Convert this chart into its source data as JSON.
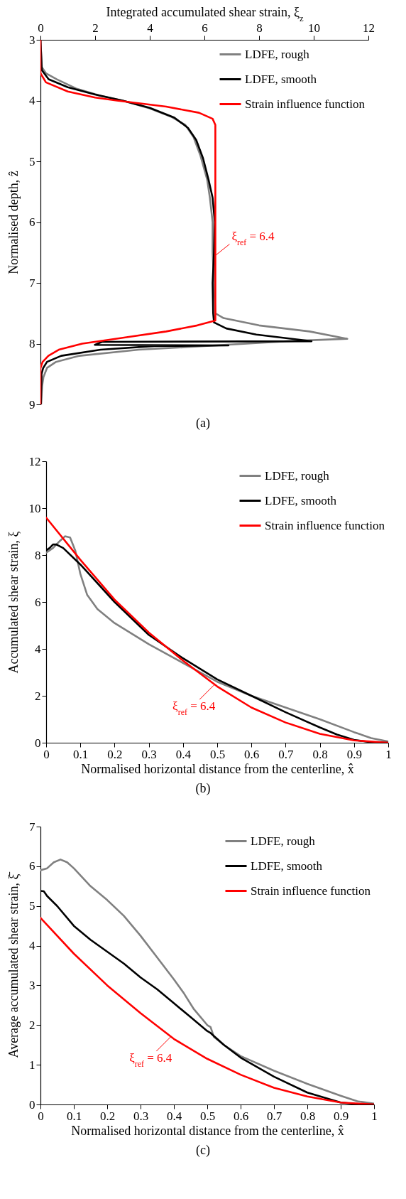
{
  "chart_data": [
    {
      "type": "line",
      "xlabel": "Integrated accumulated shear strain, ξ$_{z}$",
      "ylabel": "Normalised depth, ẑ",
      "xlim": [
        0,
        12
      ],
      "xticks": [
        0,
        2,
        4,
        6,
        8,
        10,
        12
      ],
      "ylim": [
        9,
        3
      ],
      "yticks": [
        3,
        4,
        5,
        6,
        7,
        8,
        9
      ],
      "legend": "top right",
      "annotations": [
        {
          "text": "ξ$_{ref}$ = 6.4",
          "x": 6.4,
          "y": 6.55
        },
        "(a)"
      ],
      "series": [
        {
          "name": "LDFE, rough",
          "color": "#808080",
          "x": [
            0,
            0.05,
            0.2,
            0.6,
            1.3,
            2.2,
            3,
            4,
            4.8,
            5.3,
            5.6,
            5.85,
            6.1,
            6.2,
            6.3,
            6.3,
            6.35,
            6.4,
            6.7,
            8.0,
            9.85,
            11.23,
            9.0,
            5.64,
            3.6,
            1.43,
            0.57,
            0.24,
            0.11,
            0.06,
            0.02
          ],
          "values": [
            3,
            3.45,
            3.55,
            3.65,
            3.8,
            3.92,
            4.0,
            4.13,
            4.27,
            4.4,
            4.6,
            4.9,
            5.3,
            5.6,
            6.0,
            6.5,
            7.0,
            7.5,
            7.58,
            7.7,
            7.8,
            7.92,
            7.96,
            8.05,
            8.1,
            8.2,
            8.3,
            8.4,
            8.55,
            8.7,
            9
          ]
        },
        {
          "name": "LDFE, smooth",
          "color": "#000000",
          "x": [
            0,
            0.05,
            0.3,
            1,
            2,
            3,
            4,
            4.9,
            5.4,
            5.7,
            5.95,
            6.15,
            6.3,
            6.38,
            6.35,
            6.3,
            6.32,
            6.35,
            6.8,
            7.9,
            9.37,
            9.92,
            2.25,
            1.99,
            6.88,
            4.17,
            2.2,
            0.76,
            0.24,
            0.1,
            0.04,
            0.02
          ],
          "values": [
            3,
            3.5,
            3.65,
            3.78,
            3.9,
            4.0,
            4.12,
            4.28,
            4.45,
            4.65,
            4.95,
            5.3,
            5.6,
            6.0,
            6.5,
            7.0,
            7.5,
            7.65,
            7.75,
            7.85,
            7.93,
            7.96,
            7.97,
            8.02,
            8.03,
            8.04,
            8.1,
            8.2,
            8.3,
            8.4,
            8.5,
            9
          ]
        },
        {
          "name": "Strain influence function",
          "color": "#ff0000",
          "x": [
            0,
            0,
            0.2,
            1.0,
            2.0,
            2.8,
            4.6,
            5.8,
            6.3,
            6.4,
            6.4,
            6.4,
            5.74,
            4.6,
            3.06,
            1.53,
            0.67,
            0.29,
            0.08,
            0,
            0
          ],
          "values": [
            3,
            3.55,
            3.7,
            3.85,
            3.95,
            4.0,
            4.1,
            4.2,
            4.3,
            4.4,
            7.0,
            7.62,
            7.7,
            7.8,
            7.9,
            8.0,
            8.1,
            8.2,
            8.3,
            8.4,
            9
          ]
        }
      ]
    },
    {
      "type": "line",
      "xlabel": "Normalised horizontal distance from the centerline, x̂",
      "ylabel": "Accumulated shear strain, ξ",
      "xlim": [
        0,
        1
      ],
      "xticks": [
        0,
        0.1,
        0.2,
        0.3,
        0.4,
        0.5,
        0.6,
        0.7,
        0.8,
        0.9,
        1
      ],
      "ylim": [
        0,
        12
      ],
      "yticks": [
        0,
        2,
        4,
        6,
        8,
        10,
        12
      ],
      "legend": "top right",
      "annotations": [
        {
          "text": "ξ$_{ref}$ = 6.4",
          "x": 0.49,
          "y": 2.45
        },
        "(b)"
      ],
      "series": [
        {
          "name": "LDFE, rough",
          "color": "#808080",
          "x": [
            0,
            0.02,
            0.04,
            0.055,
            0.07,
            0.085,
            0.1,
            0.12,
            0.15,
            0.2,
            0.3,
            0.4,
            0.5,
            0.6,
            0.7,
            0.8,
            0.9,
            0.95,
            1
          ],
          "values": [
            8.1,
            8.3,
            8.6,
            8.8,
            8.75,
            8.2,
            7.2,
            6.3,
            5.7,
            5.1,
            4.2,
            3.4,
            2.6,
            2.0,
            1.5,
            1.0,
            0.45,
            0.2,
            0.05
          ]
        },
        {
          "name": "LDFE, smooth",
          "color": "#000000",
          "x": [
            0,
            0.01,
            0.02,
            0.03,
            0.05,
            0.1,
            0.2,
            0.3,
            0.4,
            0.5,
            0.6,
            0.7,
            0.8,
            0.85,
            0.9,
            0.95,
            1
          ],
          "values": [
            8.2,
            8.3,
            8.45,
            8.45,
            8.3,
            7.6,
            6.0,
            4.6,
            3.6,
            2.7,
            2.0,
            1.3,
            0.65,
            0.35,
            0.12,
            0.02,
            0
          ]
        },
        {
          "name": "Strain influence function",
          "color": "#ff0000",
          "x": [
            0,
            0.1,
            0.2,
            0.3,
            0.4,
            0.5,
            0.6,
            0.7,
            0.8,
            0.9,
            1
          ],
          "values": [
            9.6,
            7.8,
            6.1,
            4.7,
            3.5,
            2.4,
            1.5,
            0.86,
            0.38,
            0.1,
            0
          ]
        }
      ]
    },
    {
      "type": "line",
      "xlabel": "Normalised horizontal distance from the centerline, x̂",
      "ylabel": "Average accumulated shear strain, ξ̄",
      "xlim": [
        0,
        1
      ],
      "xticks": [
        0,
        0.1,
        0.2,
        0.3,
        0.4,
        0.5,
        0.6,
        0.7,
        0.8,
        0.9,
        1
      ],
      "ylim": [
        0,
        7
      ],
      "yticks": [
        0,
        1,
        2,
        3,
        4,
        5,
        6,
        7
      ],
      "legend": "top right",
      "annotations": [
        {
          "text": "ξ$_{ref}$ = 6.4",
          "x": 0.39,
          "y": 1.7
        },
        "(c)"
      ],
      "series": [
        {
          "name": "LDFE, rough",
          "color": "#808080",
          "x": [
            0,
            0.02,
            0.04,
            0.06,
            0.08,
            0.1,
            0.15,
            0.2,
            0.25,
            0.3,
            0.35,
            0.4,
            0.43,
            0.46,
            0.5,
            0.51,
            0.52,
            0.55,
            0.6,
            0.7,
            0.8,
            0.9,
            0.95,
            1
          ],
          "values": [
            5.9,
            5.95,
            6.1,
            6.17,
            6.1,
            5.95,
            5.5,
            5.15,
            4.75,
            4.25,
            3.7,
            3.15,
            2.8,
            2.4,
            2.0,
            1.95,
            1.7,
            1.5,
            1.22,
            0.85,
            0.52,
            0.22,
            0.08,
            0.02
          ]
        },
        {
          "name": "LDFE, smooth",
          "color": "#000000",
          "x": [
            0,
            0.01,
            0.02,
            0.05,
            0.1,
            0.15,
            0.2,
            0.25,
            0.3,
            0.35,
            0.4,
            0.45,
            0.5,
            0.51,
            0.55,
            0.6,
            0.7,
            0.8,
            0.9,
            0.95,
            1
          ],
          "values": [
            5.38,
            5.37,
            5.25,
            5.0,
            4.5,
            4.15,
            3.85,
            3.55,
            3.2,
            2.9,
            2.55,
            2.2,
            1.85,
            1.8,
            1.5,
            1.18,
            0.7,
            0.3,
            0.05,
            0.01,
            0
          ]
        },
        {
          "name": "Strain influence function",
          "color": "#ff0000",
          "x": [
            0,
            0.1,
            0.2,
            0.3,
            0.4,
            0.5,
            0.6,
            0.7,
            0.8,
            0.9,
            1
          ],
          "values": [
            4.7,
            3.8,
            3.0,
            2.3,
            1.65,
            1.15,
            0.75,
            0.42,
            0.2,
            0.05,
            0
          ]
        }
      ]
    }
  ]
}
